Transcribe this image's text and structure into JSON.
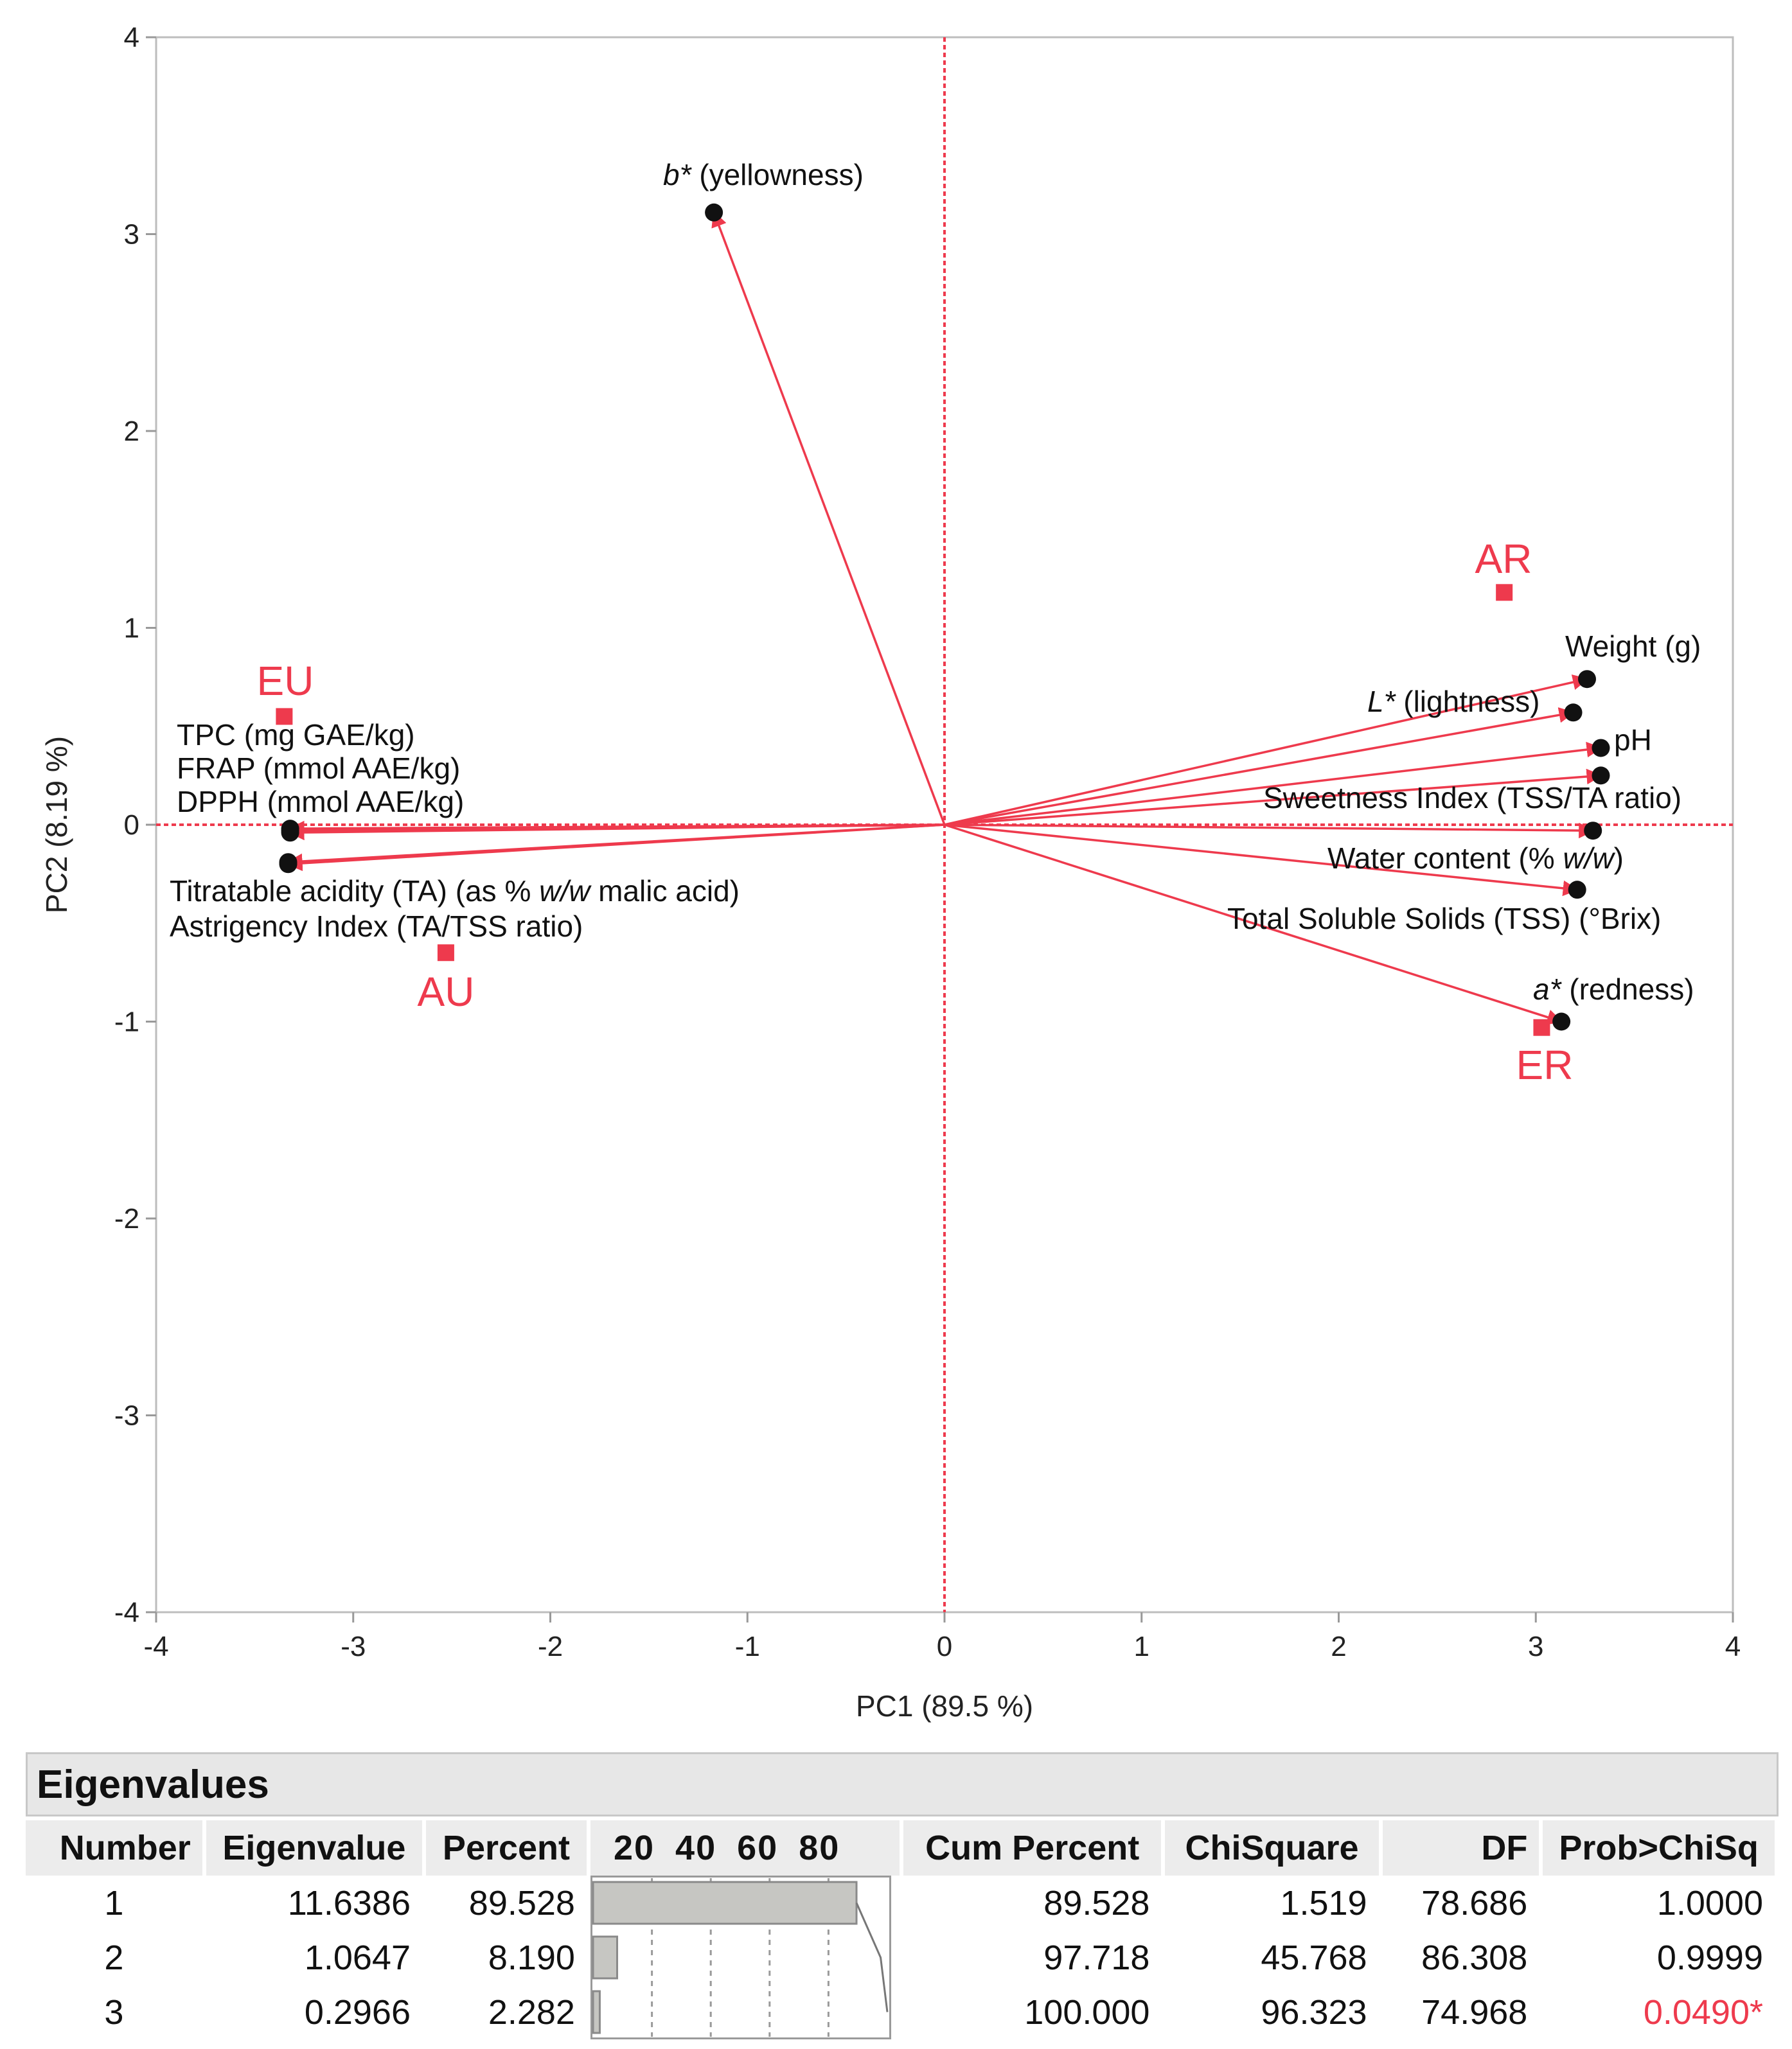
{
  "chart_data": {
    "type": "scatter",
    "subtype": "pca-biplot",
    "xlabel": "PC1  (89.5 %)",
    "ylabel": "PC2  (8.19 %)",
    "xlim": [
      -4,
      4
    ],
    "ylim": [
      -4,
      4
    ],
    "xticks": [
      -4,
      -3,
      -2,
      -1,
      0,
      1,
      2,
      3,
      4
    ],
    "yticks": [
      -4,
      -3,
      -2,
      -1,
      0,
      1,
      2,
      3,
      4
    ],
    "grid": false,
    "colors": {
      "accent": "#ee3a4d",
      "point": "#111111",
      "frame": "#bdbdbd"
    },
    "observations": [
      {
        "name": "AR",
        "x": 2.84,
        "y": 1.18
      },
      {
        "name": "EU",
        "x": -3.35,
        "y": 0.55
      },
      {
        "name": "AU",
        "x": -2.53,
        "y": -0.65
      },
      {
        "name": "ER",
        "x": 3.03,
        "y": -1.03
      }
    ],
    "loadings": [
      {
        "name": "b* (yellowness)",
        "x": -1.17,
        "y": 3.11
      },
      {
        "name": "Weight (g)",
        "x": 3.26,
        "y": 0.74
      },
      {
        "name": "L* (lightness)",
        "x": 3.19,
        "y": 0.57
      },
      {
        "name": "pH",
        "x": 3.33,
        "y": 0.39
      },
      {
        "name": "Sweetness Index (TSS/TA ratio)",
        "x": 3.33,
        "y": 0.25
      },
      {
        "name": "Water content (% w/w)",
        "x": 3.29,
        "y": -0.03
      },
      {
        "name": "Total Soluble Solids (TSS) (°Brix)",
        "x": 3.21,
        "y": -0.33
      },
      {
        "name": "a* (redness)",
        "x": 3.13,
        "y": -1.0
      },
      {
        "name": "TPC (mg GAE/kg)",
        "x": -3.32,
        "y": -0.02
      },
      {
        "name": "FRAP (mmol AAE/kg)",
        "x": -3.32,
        "y": -0.03
      },
      {
        "name": "DPPH (mmol AAE/kg)",
        "x": -3.32,
        "y": -0.04
      },
      {
        "name": "Titratable acidity (TA) (as % w/w malic acid)",
        "x": -3.33,
        "y": -0.19
      },
      {
        "name": "Astrigency Index (TA/TSS ratio)",
        "x": -3.33,
        "y": -0.2
      }
    ]
  },
  "labels": {
    "tpc": "TPC (mg GAE/kg)",
    "frap": "FRAP (mmol AAE/kg)",
    "dpph": "DPPH (mmol AAE/kg)",
    "ta_pre": "Titratable acidity (TA) (as % ",
    "ta_ital": "w/w",
    "ta_post": " malic acid)",
    "ai": "Astrigency Index (TA/TSS ratio)",
    "b_ital": "b*",
    "b_rest": " (yellowness)",
    "weight": "Weight (g)",
    "l_ital": "L*",
    "l_rest": " (lightness)",
    "ph": "pH",
    "sweet": "Sweetness Index (TSS/TA ratio)",
    "water_pre": "Water content (% ",
    "water_ital": "w/w",
    "water_post": ")",
    "tss": "Total Soluble Solids (TSS) (°Brix)",
    "a_ital": "a*",
    "a_rest": " (redness)"
  },
  "eigen": {
    "title": "Eigenvalues",
    "headers": {
      "number": "Number",
      "eigenvalue": "Eigenvalue",
      "percent": "Percent",
      "bar_ticks": [
        "20",
        "40",
        "60",
        "80"
      ],
      "cum_percent": "Cum Percent",
      "chisquare": "ChiSquare",
      "df": "DF",
      "prob": "Prob>ChiSq"
    },
    "rows": [
      {
        "number": "1",
        "eigenvalue": "11.6386",
        "percent": "89.528",
        "percent_value": 89.528,
        "cum_percent": "89.528",
        "cum_value": 89.528,
        "chisquare": "1.519",
        "df": "78.686",
        "prob": "1.0000"
      },
      {
        "number": "2",
        "eigenvalue": "1.0647",
        "percent": "8.190",
        "percent_value": 8.19,
        "cum_percent": "97.718",
        "cum_value": 97.718,
        "chisquare": "45.768",
        "df": "86.308",
        "prob": "0.9999"
      },
      {
        "number": "3",
        "eigenvalue": "0.2966",
        "percent": "2.282",
        "percent_value": 2.282,
        "cum_percent": "100.000",
        "cum_value": 100.0,
        "chisquare": "96.323",
        "df": "74.968",
        "prob": "0.0490*"
      }
    ]
  }
}
